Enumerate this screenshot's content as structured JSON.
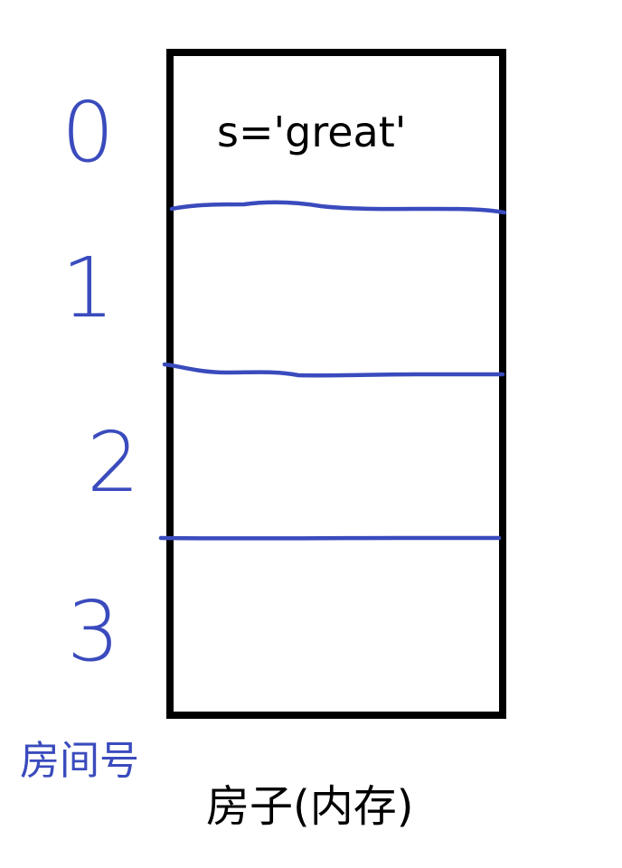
{
  "diagram": {
    "cell_content": "s='great'",
    "room_numbers": [
      "0",
      "1",
      "2",
      "3"
    ],
    "room_numbers_label": "房间号",
    "house_label": "房子(内存)",
    "colors": {
      "ink": "#000000",
      "pen": "#3a4bbd"
    }
  }
}
